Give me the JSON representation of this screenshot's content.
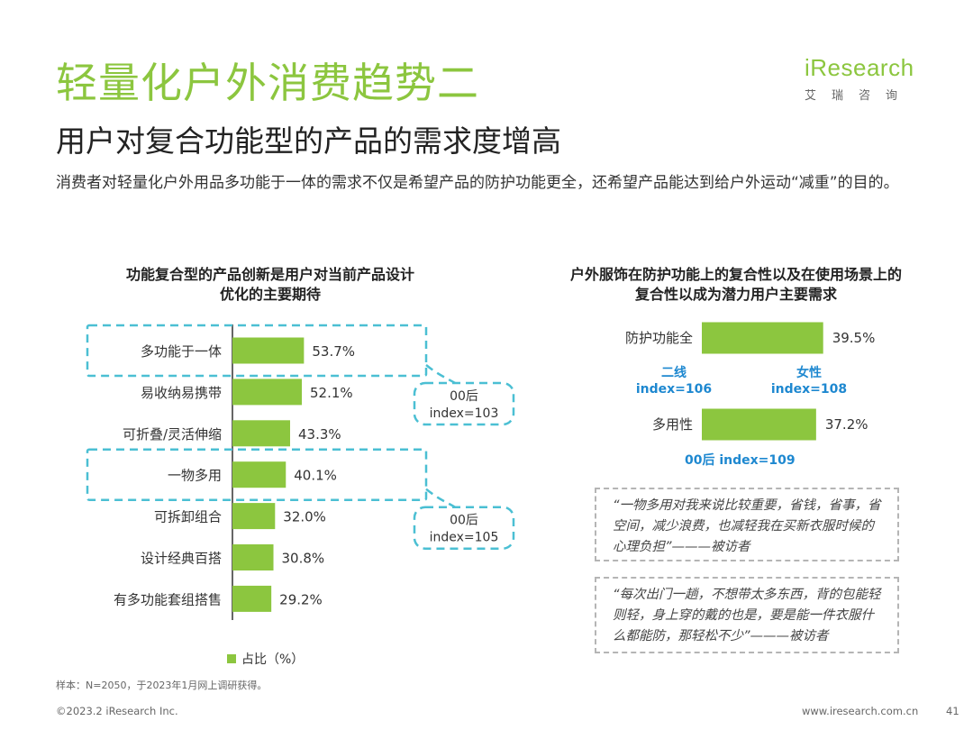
{
  "header": {
    "title": "轻量化户外消费趋势二",
    "subtitle": "用户对复合功能型的产品的需求度增高",
    "intro": "消费者对轻量化户外用品多功能于一体的需求不仅是希望产品的防护功能更全，还希望产品能达到给户外运动“减重”的目的。"
  },
  "logo": {
    "word": "iResearch",
    "sub": "艾瑞咨询"
  },
  "colors": {
    "accent": "#8cc63f",
    "highlight_border": "#4bbfd3",
    "index_text": "#1e88d0",
    "quote_border": "#b5b5b5"
  },
  "chart_data": [
    {
      "type": "bar",
      "orientation": "horizontal",
      "title": "功能复合型的产品创新是用户对当前产品设计优化的主要期待",
      "categories": [
        "多功能于一体",
        "易收纳易携带",
        "可折叠/灵活伸缩",
        "一物多用",
        "可拆卸组合",
        "设计经典百搭",
        "有多功能套组搭售"
      ],
      "series": [
        {
          "name": "占比（%）",
          "values": [
            53.7,
            52.1,
            43.3,
            40.1,
            32.0,
            30.8,
            29.2
          ]
        }
      ],
      "value_labels": [
        "53.7%",
        "52.1%",
        "43.3%",
        "40.1%",
        "32.0%",
        "30.8%",
        "29.2%"
      ],
      "highlighted_categories": [
        "多功能于一体",
        "一物多用"
      ],
      "annotations": [
        {
          "target": "多功能于一体",
          "lines": [
            "00后",
            "index=103"
          ]
        },
        {
          "target": "一物多用",
          "lines": [
            "00后",
            "index=105"
          ]
        }
      ],
      "legend": {
        "position": "bottom",
        "label": "占比（%）"
      }
    },
    {
      "type": "bar",
      "orientation": "horizontal",
      "title": "户外服饰在防护功能上的复合性以及在使用场景上的复合性以成为潜力用户主要需求",
      "categories": [
        "防护功能全",
        "多用性"
      ],
      "values": [
        39.5,
        37.2
      ],
      "value_labels": [
        "39.5%",
        "37.2%"
      ],
      "annotations": [
        {
          "target": "防护功能全",
          "position": "below-left",
          "lines": [
            "二线",
            "index=106"
          ]
        },
        {
          "target": "防护功能全",
          "position": "below-right",
          "lines": [
            "女性",
            "index=108"
          ]
        },
        {
          "target": "多用性",
          "position": "below",
          "text": "00后   index=109"
        }
      ]
    }
  ],
  "quotes": [
    "“一物多用对我来说比较重要，省钱，省事，省空间，减少浪费，也减轻我在买新衣服时候的心理负担”———被访者",
    "“每次出门一趟，不想带太多东西，背的包能轻则轻，身上穿的戴的也是，要是能一件衣服什么都能防，那轻松不少”———被访者"
  ],
  "footer": {
    "footnote": "样本：N=2050，于2023年1月网上调研获得。",
    "copyright": "©2023.2 iResearch Inc.",
    "site": "www.iresearch.com.cn",
    "page": "41"
  }
}
